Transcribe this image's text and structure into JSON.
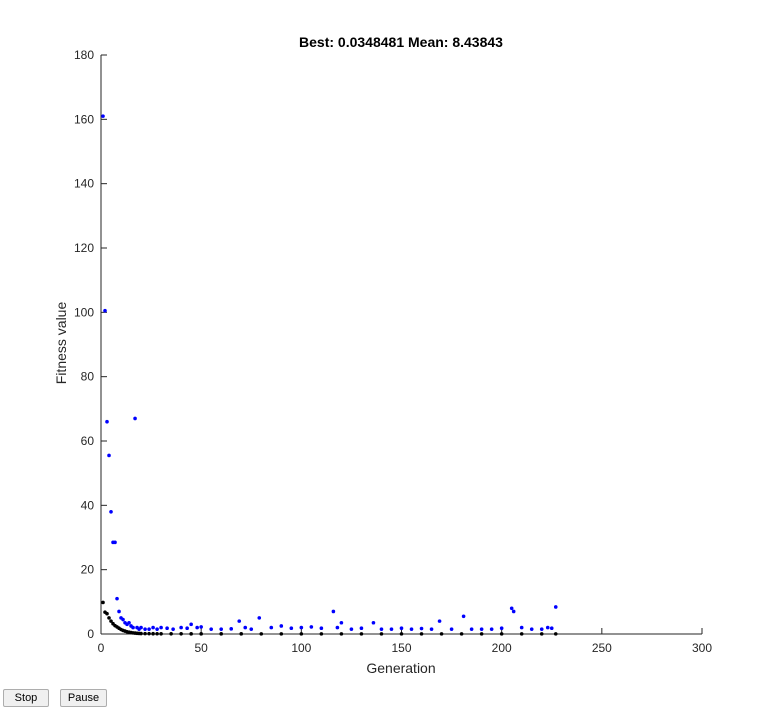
{
  "controls": {
    "stop_label": "Stop",
    "pause_label": "Pause"
  },
  "chart_data": {
    "type": "scatter",
    "title": "Best: 0.0348481 Mean: 8.43843",
    "xlabel": "Generation",
    "ylabel": "Fitness value",
    "xlim": [
      0,
      300
    ],
    "ylim": [
      0,
      180
    ],
    "xticks": [
      0,
      50,
      100,
      150,
      200,
      250,
      300
    ],
    "yticks": [
      0,
      20,
      40,
      60,
      80,
      100,
      120,
      140,
      160,
      180
    ],
    "grid": false,
    "legend": "none",
    "series": [
      {
        "color": "#000000",
        "x": [
          1,
          2,
          3,
          4,
          5,
          6,
          7,
          8,
          9,
          10,
          11,
          12,
          13,
          14,
          15,
          16,
          17,
          18,
          19,
          20,
          22,
          24,
          26,
          28,
          30,
          35,
          40,
          45,
          50,
          60,
          70,
          80,
          90,
          100,
          110,
          120,
          130,
          140,
          150,
          160,
          170,
          180,
          190,
          200,
          210,
          220,
          227
        ],
        "y": [
          9.8,
          6.8,
          6.3,
          5.0,
          4.0,
          3.2,
          2.6,
          2.2,
          1.8,
          1.4,
          1.1,
          0.9,
          0.7,
          0.55,
          0.45,
          0.35,
          0.28,
          0.22,
          0.18,
          0.15,
          0.12,
          0.1,
          0.09,
          0.08,
          0.07,
          0.06,
          0.06,
          0.05,
          0.05,
          0.05,
          0.05,
          0.04,
          0.04,
          0.04,
          0.04,
          0.04,
          0.04,
          0.04,
          0.04,
          0.04,
          0.04,
          0.035,
          0.035,
          0.035,
          0.035,
          0.035,
          0.035
        ]
      },
      {
        "color": "#0000ff",
        "x": [
          1,
          2,
          3,
          4,
          5,
          6,
          7,
          8,
          9,
          10,
          11,
          12,
          13,
          14,
          15,
          16,
          17,
          18,
          19,
          20,
          22,
          24,
          26,
          28,
          30,
          33,
          36,
          40,
          43,
          45,
          48,
          50,
          55,
          60,
          65,
          69,
          72,
          75,
          79,
          85,
          90,
          95,
          100,
          105,
          110,
          116,
          118,
          120,
          125,
          130,
          136,
          140,
          145,
          150,
          155,
          160,
          165,
          169,
          175,
          181,
          185,
          190,
          195,
          200,
          205,
          206,
          210,
          215,
          220,
          223,
          225,
          227
        ],
        "y": [
          161,
          100.5,
          66,
          55.5,
          38,
          28.5,
          28.5,
          11,
          7,
          5,
          4.5,
          3.5,
          3,
          3.5,
          2.5,
          2,
          67,
          2,
          1.5,
          2,
          1.5,
          1.5,
          2,
          1.5,
          2,
          1.8,
          1.5,
          2,
          1.8,
          3,
          2,
          2.2,
          1.5,
          1.5,
          1.6,
          4,
          2,
          1.5,
          5,
          2,
          2.5,
          1.8,
          2,
          2.2,
          1.8,
          7,
          2,
          3.5,
          1.5,
          1.8,
          3.5,
          1.5,
          1.5,
          1.8,
          1.5,
          1.7,
          1.5,
          4,
          1.5,
          5.5,
          1.5,
          1.5,
          1.5,
          1.8,
          8,
          7,
          2,
          1.5,
          1.5,
          2,
          1.8,
          8.4
        ]
      }
    ]
  }
}
